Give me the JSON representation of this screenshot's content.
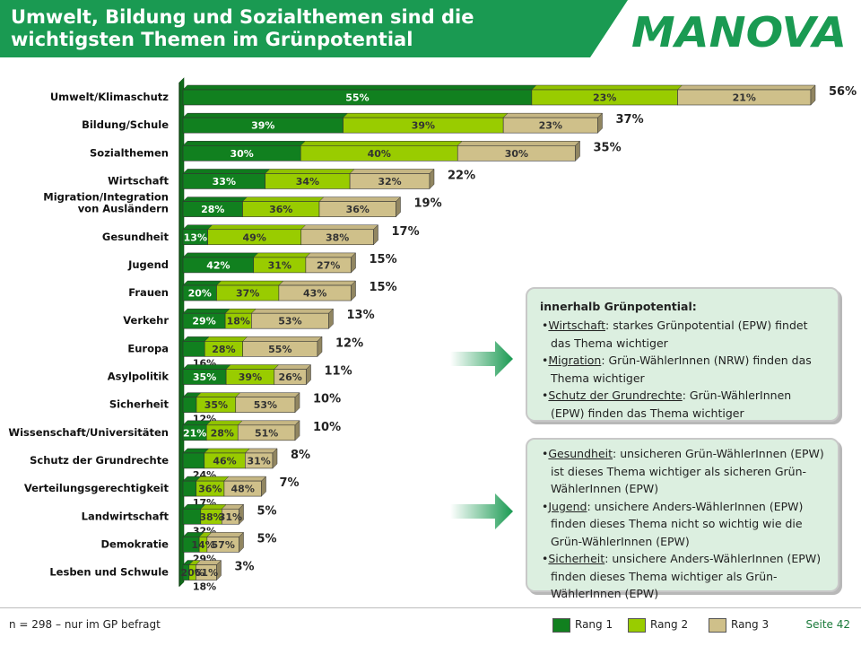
{
  "title": "Umwelt, Bildung und Sozialthemen sind die wichtigsten Themen im Grünpotential",
  "logo_text": "MANOVA",
  "footnote": "n = 298 – nur im GP befragt",
  "page_number": "Seite 42",
  "legend": [
    {
      "label": "Rang 1",
      "color": "#11801f"
    },
    {
      "label": "Rang  2",
      "color": "#99cc00"
    },
    {
      "label": "Rang  3",
      "color": "#cfc08a"
    }
  ],
  "callout_top": {
    "heading": "innerhalb Grünpotential:",
    "items": [
      {
        "term": "Wirtschaft",
        "text": ": starkes Grünpotential  (EPW) findet das Thema wichtiger"
      },
      {
        "term": "Migration",
        "text": ":  Grün-WählerInnen  (NRW) finden das Thema wichtiger"
      },
      {
        "term": "Schutz der Grundrechte",
        "text": ": Grün-WählerInnen (EPW) finden das Thema wichtiger"
      }
    ]
  },
  "callout_bottom": {
    "items": [
      {
        "term": "Gesundheit",
        "text": ":  unsicheren Grün-WählerInnen (EPW) ist dieses Thema wichtiger  als sicheren Grün-WählerInnen  (EPW)"
      },
      {
        "term": "Jugend",
        "text": ": unsichere Anders-WählerInnen (EPW) finden dieses Thema nicht so wichtig wie die Grün-WählerInnen  (EPW)"
      },
      {
        "term": "Sicherheit",
        "text": ":  unsichere Anders-WählerInnen (EPW) finden dieses Thema wichtiger als Grün-WählerInnen  (EPW)"
      }
    ]
  },
  "chart_data": {
    "type": "bar",
    "orientation": "horizontal-stacked",
    "scale_note": "bar length = total share; segments = share of Rang 1/2/3 within total",
    "series_names": [
      "Rang 1",
      "Rang  2",
      "Rang  3"
    ],
    "series_colors": [
      "#11801f",
      "#99cc00",
      "#cfc08a"
    ],
    "categories": [
      {
        "name": "Umwelt/Klimaschutz",
        "total": 56,
        "total_label": "56%",
        "segments": [
          55,
          23,
          21
        ],
        "seg_labels": [
          "55%",
          "23%",
          "21%"
        ]
      },
      {
        "name": "Bildung/Schule",
        "total": 37,
        "total_label": "37%",
        "segments": [
          39,
          39,
          23
        ],
        "seg_labels": [
          "39%",
          "39%",
          "23%"
        ]
      },
      {
        "name": "Sozialthemen",
        "total": 35,
        "total_label": "35%",
        "segments": [
          30,
          40,
          30
        ],
        "seg_labels": [
          "30%",
          "40%",
          "30%"
        ]
      },
      {
        "name": "Wirtschaft",
        "total": 22,
        "total_label": "22%",
        "segments": [
          33,
          34,
          32
        ],
        "seg_labels": [
          "33%",
          "34%",
          "32%"
        ]
      },
      {
        "name": "Migration/Integration\nvon Ausländern",
        "total": 19,
        "total_label": "19%",
        "segments": [
          28,
          36,
          36
        ],
        "seg_labels": [
          "28%",
          "36%",
          "36%"
        ]
      },
      {
        "name": "Gesundheit",
        "total": 17,
        "total_label": "17%",
        "segments": [
          13,
          49,
          38
        ],
        "seg_labels": [
          "13%",
          "49%",
          "38%"
        ]
      },
      {
        "name": "Jugend",
        "total": 15,
        "total_label": "15%",
        "segments": [
          42,
          31,
          27
        ],
        "seg_labels": [
          "42%",
          "31%",
          "27%"
        ]
      },
      {
        "name": "Frauen",
        "total": 15,
        "total_label": "15%",
        "segments": [
          20,
          37,
          43
        ],
        "seg_labels": [
          "20%",
          "37%",
          "43%"
        ]
      },
      {
        "name": "Verkehr",
        "total": 13,
        "total_label": "13%",
        "segments": [
          29,
          18,
          53
        ],
        "seg_labels": [
          "29%",
          "18%",
          "53%"
        ]
      },
      {
        "name": "Europa",
        "total": 12,
        "total_label": "12%",
        "segments": [
          16,
          28,
          55
        ],
        "seg_labels": [
          "16%",
          "28%",
          "55%"
        ]
      },
      {
        "name": "Asylpolitik",
        "total": 11,
        "total_label": "11%",
        "segments": [
          35,
          39,
          26
        ],
        "seg_labels": [
          "35%",
          "39%",
          "26%"
        ]
      },
      {
        "name": "Sicherheit",
        "total": 10,
        "total_label": "10%",
        "segments": [
          12,
          35,
          53
        ],
        "seg_labels": [
          "12%",
          "35%",
          "53%"
        ]
      },
      {
        "name": "Wissenschaft/Universitäten",
        "total": 10,
        "total_label": "10%",
        "segments": [
          21,
          28,
          51
        ],
        "seg_labels": [
          "21%",
          "28%",
          "51%"
        ]
      },
      {
        "name": "Schutz der Grundrechte",
        "total": 8,
        "total_label": "8%",
        "segments": [
          24,
          46,
          31
        ],
        "seg_labels": [
          "24%",
          "46%",
          "31%"
        ]
      },
      {
        "name": "Verteilungsgerechtigkeit",
        "total": 7,
        "total_label": "7%",
        "segments": [
          17,
          36,
          48
        ],
        "seg_labels": [
          "17%",
          "36%",
          "48%"
        ]
      },
      {
        "name": "Landwirtschaft",
        "total": 5,
        "total_label": "5%",
        "segments": [
          32,
          38,
          31
        ],
        "seg_labels": [
          "32%",
          "38%",
          "31%"
        ]
      },
      {
        "name": "Demokratie",
        "total": 5,
        "total_label": "5%",
        "segments": [
          29,
          14,
          57
        ],
        "seg_labels": [
          "29%",
          "14%",
          "57%"
        ]
      },
      {
        "name": "Lesben und Schwule",
        "total": 3,
        "total_label": "3%",
        "segments": [
          18,
          20,
          61
        ],
        "seg_labels": [
          "18%",
          "20%",
          "61%"
        ]
      }
    ]
  }
}
